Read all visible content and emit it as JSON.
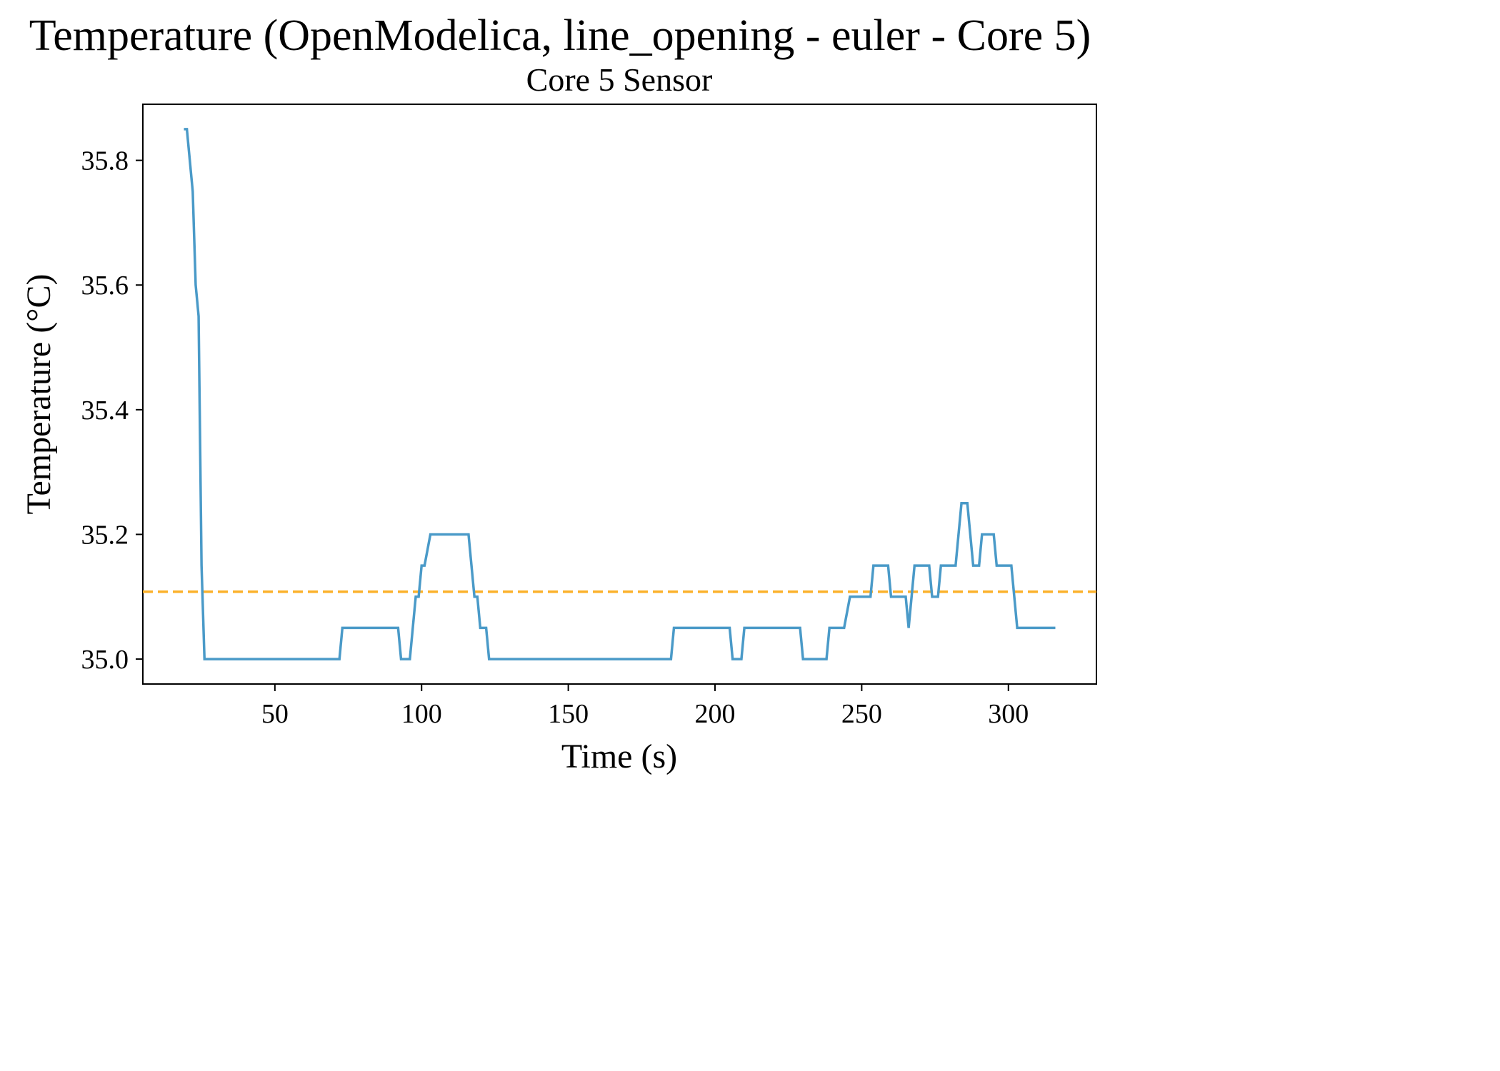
{
  "chart_data": {
    "type": "line",
    "title": "Temperature (OpenModelica, line_opening - euler - Core 5)",
    "subtitle": "Core 5 Sensor",
    "xlabel": "Time (s)",
    "ylabel": "Temperature (°C)",
    "xlim": [
      5,
      330
    ],
    "ylim": [
      34.96,
      35.89
    ],
    "xticks": [
      50,
      100,
      150,
      200,
      250,
      300
    ],
    "yticks": [
      35.0,
      35.2,
      35.4,
      35.6,
      35.8
    ],
    "xtick_labels": [
      "50",
      "100",
      "150",
      "200",
      "250",
      "300"
    ],
    "ytick_labels": [
      "35.0",
      "35.2",
      "35.4",
      "35.6",
      "35.8"
    ],
    "grid": false,
    "colors": {
      "series": "#4a9ac8",
      "reference": "#fbb12a"
    },
    "series": [
      {
        "x": [
          19,
          20,
          22,
          23,
          24,
          25,
          26,
          27,
          72,
          73,
          92,
          93,
          96,
          98,
          99,
          100,
          101,
          103,
          116,
          118,
          119,
          120,
          122,
          123,
          185,
          186,
          205,
          206,
          209,
          210,
          229,
          230,
          238,
          239,
          244,
          246,
          253,
          254,
          259,
          260,
          265,
          266,
          268,
          269,
          273,
          274,
          276,
          277,
          282,
          284,
          286,
          288,
          290,
          291,
          295,
          296,
          301,
          303,
          304,
          316
        ],
        "y": [
          35.85,
          35.85,
          35.75,
          35.6,
          35.55,
          35.15,
          35.0,
          35.0,
          35.0,
          35.05,
          35.05,
          35.0,
          35.0,
          35.1,
          35.1,
          35.15,
          35.15,
          35.2,
          35.2,
          35.1,
          35.1,
          35.05,
          35.05,
          35.0,
          35.0,
          35.05,
          35.05,
          35.0,
          35.0,
          35.05,
          35.05,
          35.0,
          35.0,
          35.05,
          35.05,
          35.1,
          35.1,
          35.15,
          35.15,
          35.1,
          35.1,
          35.05,
          35.15,
          35.15,
          35.15,
          35.1,
          35.1,
          35.15,
          35.15,
          35.25,
          35.25,
          35.15,
          35.15,
          35.2,
          35.2,
          35.15,
          35.15,
          35.05,
          35.05,
          35.05
        ]
      },
      {
        "y_constant": 35.108,
        "style": "dashed"
      }
    ]
  }
}
